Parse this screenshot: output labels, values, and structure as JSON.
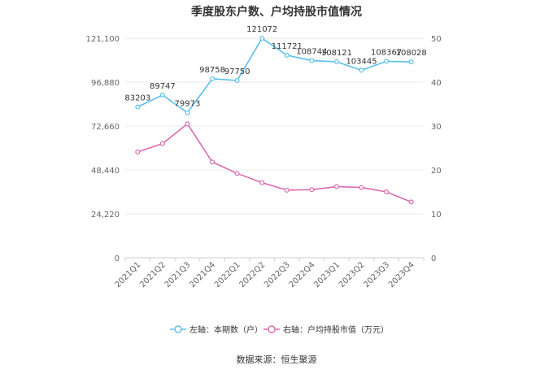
{
  "chart_data": {
    "type": "line",
    "title": "季度股东户数、户均持股市值情况",
    "categories": [
      "2021Q1",
      "2021Q2",
      "2021Q3",
      "2021Q4",
      "2022Q1",
      "2022Q2",
      "2022Q3",
      "2022Q4",
      "2023Q1",
      "2023Q2",
      "2023Q3",
      "2023Q4"
    ],
    "left_axis": {
      "ticks": [
        "0",
        "24,220",
        "48,440",
        "72,660",
        "96,880",
        "121,100"
      ],
      "ylim": [
        0,
        121100
      ]
    },
    "right_axis": {
      "ticks": [
        "0",
        "10",
        "20",
        "30",
        "40",
        "50"
      ],
      "ylim": [
        0,
        50
      ]
    },
    "series": [
      {
        "name": "左轴：本期数（户）",
        "axis": "left",
        "color": "#5bc0eb",
        "values": [
          83203,
          89747,
          79973,
          98758,
          97750,
          121072,
          111721,
          108744,
          108121,
          103445,
          108367,
          108028
        ],
        "labels": [
          "83203",
          "89747",
          "79973",
          "98758",
          "97750",
          "121072",
          "111721",
          "108744",
          "108121",
          "103445",
          "108367",
          "108028"
        ]
      },
      {
        "name": "右轴：户均持股市值（万元）",
        "axis": "right",
        "color": "#d96aaf",
        "values": [
          24.1,
          26.0,
          30.5,
          21.8,
          19.2,
          17.1,
          15.4,
          15.5,
          16.2,
          16.0,
          15.0,
          12.7
        ]
      }
    ],
    "grid": true,
    "legend": "bottom"
  },
  "footer": {
    "source": "数据来源：恒生聚源"
  }
}
